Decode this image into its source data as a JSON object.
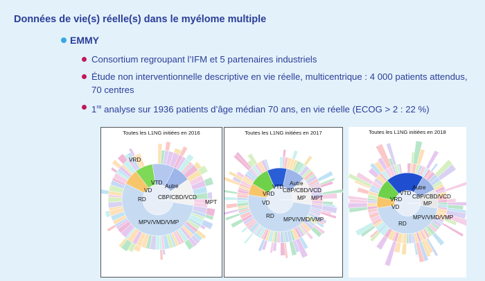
{
  "slide": {
    "title": "Données de vie(s) réelle(s) dans le myélome multiple",
    "section": "EMMY",
    "bullets": [
      "Consortium regroupant l’IFM et 5 partenaires industriels",
      "Étude non interventionnelle descriptive en vie réelle, multicentrique : 4 000 patients attendus, 70 centres"
    ],
    "bullet3": {
      "pre": "1",
      "sup": "re",
      "post": " analyse sur 1936 patients d’âge médian 70 ans, en vie réelle (ECOG > 2 : 22 %)"
    }
  },
  "panels": [
    {
      "title": "Toutes les L1NG initiées en 2016",
      "labels": [
        "VRD",
        "VD",
        "VTD",
        "Autre",
        "RD",
        "CBP/CBD/VCD",
        "MPT",
        "MPV/VMD/VMP"
      ]
    },
    {
      "title": "Toutes les L1NG initiées en 2017",
      "labels": [
        "VTD",
        "Autre",
        "VRD",
        "CBP/CBD/VCD",
        "VD",
        "MP",
        "MPT",
        "RD",
        "MPV/VMD/VMP"
      ]
    },
    {
      "title": "Toutes les L1NG initiées en 2018",
      "labels": [
        "VTD",
        "Autre",
        "VRD",
        "CBP/CBD/VCD",
        "VD",
        "MP",
        "RD",
        "MPV/VMD/VMP"
      ]
    }
  ],
  "colors": {
    "title_blue": "#2b3e96",
    "bullet_red": "#c2185b",
    "bullet_blue": "#3aa8df",
    "background": "#e3f1fb"
  }
}
